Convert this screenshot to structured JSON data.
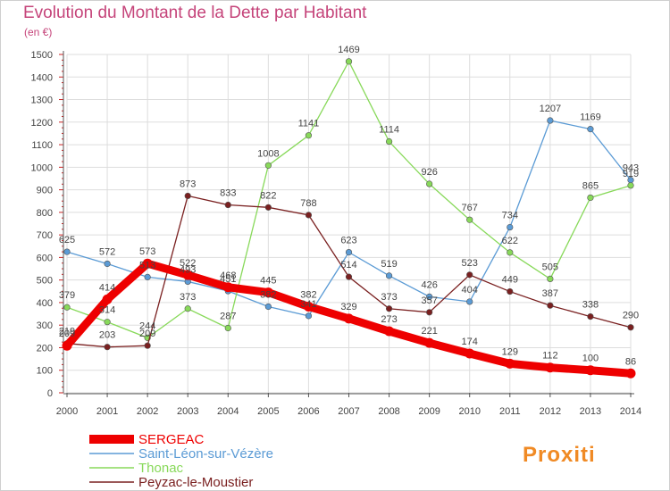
{
  "title": "Evolution du Montant de la Dette par Habitant",
  "subtitle": "(en €)",
  "brand": "Proxiti",
  "chart_data": {
    "type": "line",
    "x": [
      2000,
      2001,
      2002,
      2003,
      2004,
      2005,
      2006,
      2007,
      2008,
      2009,
      2010,
      2011,
      2012,
      2013,
      2014
    ],
    "ylim": [
      0,
      1500
    ],
    "yticks": [
      0,
      100,
      200,
      300,
      400,
      500,
      600,
      700,
      800,
      900,
      1000,
      1100,
      1200,
      1300,
      1400,
      1500
    ],
    "grid": true,
    "legend": "bottom-left",
    "series": [
      {
        "name": "SERGEAC",
        "color": "#ee0000",
        "emphasis": true,
        "values": [
          209,
          414,
          573,
          522,
          468,
          445,
          382,
          329,
          273,
          221,
          174,
          129,
          112,
          100,
          86
        ]
      },
      {
        "name": "Saint-Léon-sur-Vézère",
        "color": "#5b9bd5",
        "values": [
          625,
          572,
          513,
          493,
          451,
          382,
          341,
          623,
          519,
          426,
          404,
          734,
          1207,
          1169,
          943
        ]
      },
      {
        "name": "Thonac",
        "color": "#88d95a",
        "values": [
          379,
          314,
          244,
          373,
          287,
          1008,
          1141,
          1469,
          1114,
          926,
          767,
          622,
          505,
          865,
          919
        ]
      },
      {
        "name": "Peyzac-le-Moustier",
        "color": "#7a2020",
        "values": [
          219,
          203,
          209,
          873,
          833,
          822,
          788,
          514,
          373,
          357,
          523,
          449,
          387,
          338,
          290
        ]
      }
    ]
  }
}
